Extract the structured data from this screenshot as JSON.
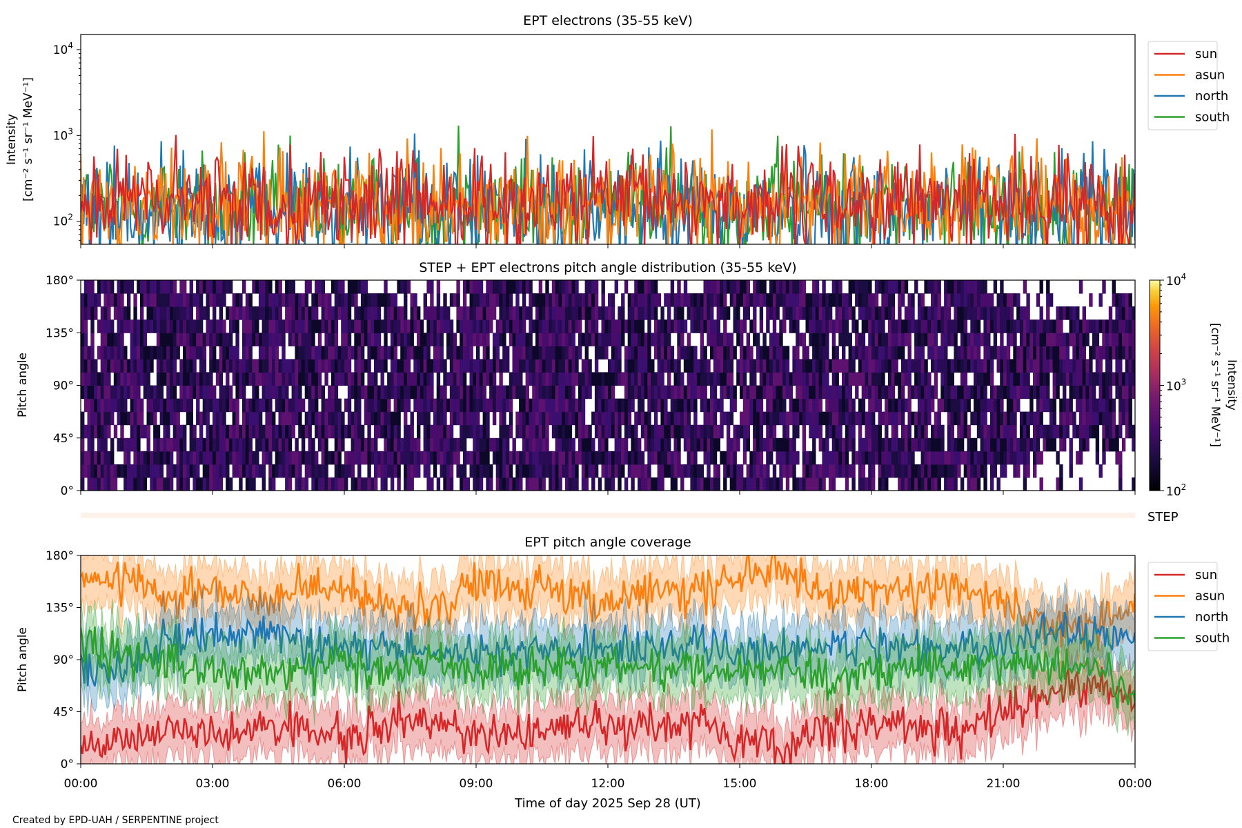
{
  "chart_data": [
    {
      "type": "line",
      "title": "EPT electrons (35-55 keV)",
      "ylabel": "Intensity",
      "ylabel_units": "[cm⁻² s⁻¹ sr⁻¹ MeV⁻¹]",
      "yscale": "log",
      "ylim": [
        54,
        15000
      ],
      "yticks": [
        {
          "value": 100,
          "base": "10",
          "exp": "2"
        },
        {
          "value": 1000,
          "base": "10",
          "exp": "3"
        },
        {
          "value": 10000,
          "base": "10",
          "exp": "4"
        }
      ],
      "xlim_hours": [
        0,
        24
      ],
      "legend_position": "outside-right-top",
      "series": [
        {
          "name": "sun",
          "color": "#d62728",
          "typical": 170,
          "spread": 0.28
        },
        {
          "name": "asun",
          "color": "#ff7f0e",
          "typical": 160,
          "spread": 0.3
        },
        {
          "name": "north",
          "color": "#1f77b4",
          "typical": 140,
          "spread": 0.32
        },
        {
          "name": "south",
          "color": "#2ca02c",
          "typical": 150,
          "spread": 0.3
        }
      ],
      "annotations": [
        {
          "x_hours": 8.6,
          "series": "south",
          "value": 1300
        }
      ]
    },
    {
      "type": "heatmap",
      "title": "STEP + EPT electrons pitch angle distribution (35-55 keV)",
      "ylabel": "Pitch angle",
      "yticks": [
        "0°",
        "45°",
        "90°",
        "135°",
        "180°"
      ],
      "ylim": [
        0,
        180
      ],
      "colorbar": {
        "label": "Intensity",
        "units": "[cm⁻² s⁻¹ sr⁻¹ MeV⁻¹]",
        "scale": "log",
        "range": [
          100,
          10000
        ],
        "colormap": "inferno",
        "ticks": [
          {
            "base": "10",
            "exp": "2"
          },
          {
            "base": "10",
            "exp": "3"
          },
          {
            "base": "10",
            "exp": "4"
          }
        ]
      },
      "typical_intensity": [
        150,
        300
      ]
    },
    {
      "type": "line",
      "title": "EPT pitch angle coverage",
      "ylabel": "Pitch angle",
      "ylim": [
        0,
        180
      ],
      "yticks": [
        "0°",
        "45°",
        "90°",
        "135°",
        "180°"
      ],
      "xlabel": "Time of day 2025 Sep 28 (UT)",
      "xticks": [
        "00:00",
        "03:00",
        "06:00",
        "09:00",
        "12:00",
        "15:00",
        "18:00",
        "21:00",
        "00:00"
      ],
      "legend_position": "outside-right-top",
      "hours": [
        0,
        1,
        2,
        3,
        4,
        5,
        6,
        7,
        8,
        9,
        10,
        11,
        12,
        13,
        14,
        15,
        16,
        17,
        18,
        19,
        20,
        21,
        22,
        23,
        24
      ],
      "series": [
        {
          "name": "sun",
          "color": "#d62728",
          "values": [
            20,
            20,
            30,
            25,
            30,
            30,
            25,
            35,
            40,
            25,
            25,
            30,
            35,
            30,
            35,
            20,
            15,
            30,
            35,
            30,
            25,
            45,
            65,
            70,
            50
          ]
        },
        {
          "name": "asun",
          "color": "#ff7f0e",
          "values": [
            160,
            160,
            145,
            150,
            140,
            150,
            150,
            140,
            130,
            155,
            150,
            150,
            140,
            150,
            145,
            165,
            165,
            145,
            150,
            150,
            155,
            140,
            120,
            115,
            140
          ]
        },
        {
          "name": "north",
          "color": "#1f77b4",
          "values": [
            85,
            85,
            105,
            110,
            115,
            105,
            95,
            100,
            100,
            95,
            100,
            100,
            100,
            100,
            105,
            95,
            95,
            110,
            100,
            100,
            95,
            100,
            115,
            110,
            115
          ]
        },
        {
          "name": "south",
          "color": "#2ca02c",
          "values": [
            100,
            95,
            85,
            80,
            80,
            80,
            85,
            80,
            90,
            80,
            85,
            85,
            85,
            85,
            80,
            80,
            85,
            70,
            80,
            80,
            85,
            90,
            90,
            80,
            60
          ]
        }
      ]
    }
  ],
  "strip_label": "STEP",
  "footer": "Created by EPD-UAH / SERPENTINE project"
}
